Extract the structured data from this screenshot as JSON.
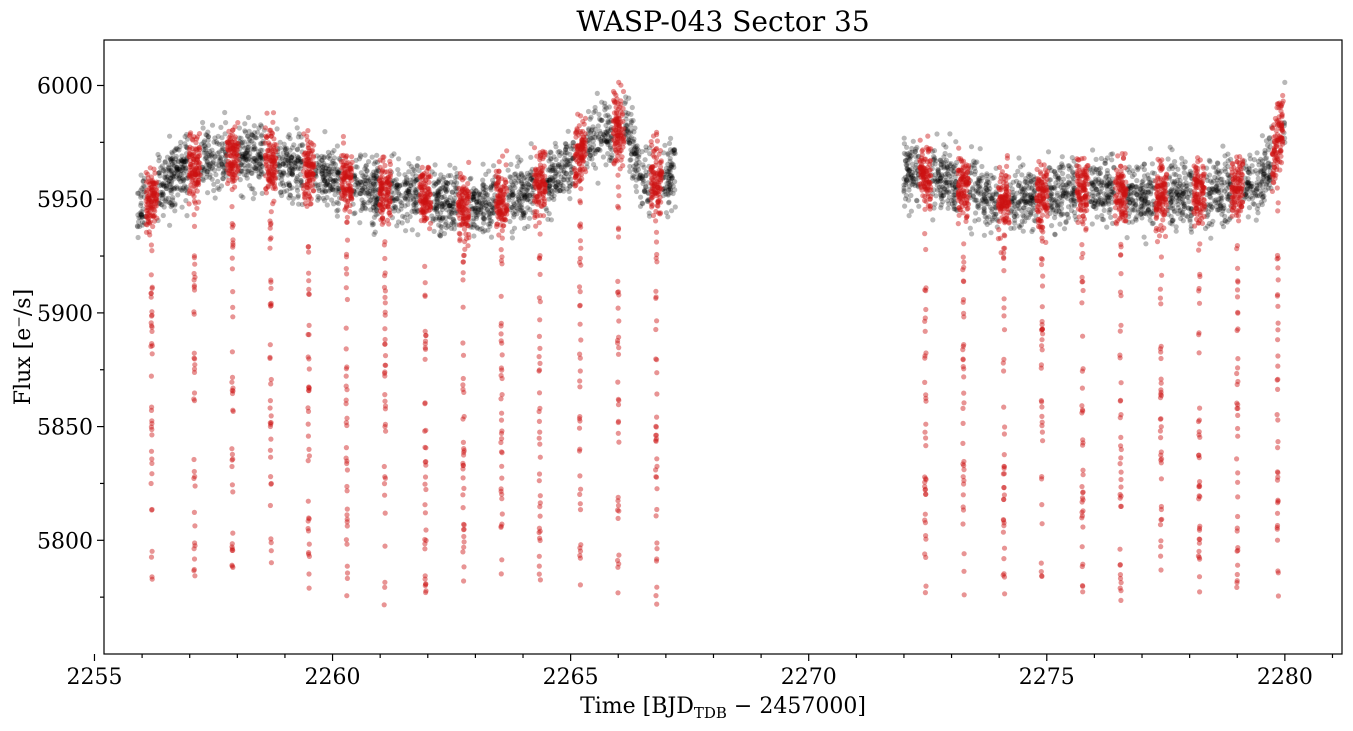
{
  "chart_data": {
    "type": "scatter",
    "title": "WASP-043 Sector 35",
    "xlabel_main": "Time [BJD",
    "xlabel_sub": "TDB",
    "xlabel_rest": " − 2457000]",
    "ylabel": "Flux [e⁻/s]",
    "xlim": [
      2255.2,
      2281.2
    ],
    "ylim": [
      5750,
      6020
    ],
    "xticks": [
      2255,
      2260,
      2265,
      2270,
      2275,
      2280
    ],
    "yticks": [
      5800,
      5850,
      5900,
      5950,
      6000
    ],
    "grid": false,
    "legend": "none",
    "segments": [
      {
        "start": 2255.9,
        "end": 2267.2
      },
      {
        "start": 2272.0,
        "end": 2280.0
      }
    ],
    "baseline_trend": [
      [
        2255.9,
        5945
      ],
      [
        2256.5,
        5957
      ],
      [
        2257.3,
        5968
      ],
      [
        2258.2,
        5970
      ],
      [
        2259.5,
        5962
      ],
      [
        2260.5,
        5956
      ],
      [
        2261.8,
        5951
      ],
      [
        2262.8,
        5947
      ],
      [
        2263.8,
        5950
      ],
      [
        2264.6,
        5960
      ],
      [
        2265.5,
        5976
      ],
      [
        2266.2,
        5982
      ],
      [
        2266.5,
        5958
      ],
      [
        2267.2,
        5960
      ],
      [
        2272.0,
        5962
      ],
      [
        2273.0,
        5958
      ],
      [
        2274.0,
        5948
      ],
      [
        2275.0,
        5952
      ],
      [
        2276.0,
        5954
      ],
      [
        2277.0,
        5952
      ],
      [
        2278.0,
        5952
      ],
      [
        2279.0,
        5954
      ],
      [
        2279.6,
        5962
      ],
      [
        2280.0,
        5982
      ]
    ],
    "transit_times": [
      2256.2,
      2257.1,
      2257.9,
      2258.7,
      2259.5,
      2260.3,
      2261.1,
      2261.95,
      2262.75,
      2263.55,
      2264.35,
      2265.2,
      2266.0,
      2266.8,
      2272.45,
      2273.25,
      2274.1,
      2274.9,
      2275.75,
      2276.55,
      2277.4,
      2278.2,
      2279.0,
      2279.85
    ],
    "in_transit_min_flux": 5780,
    "series": [
      {
        "name": "",
        "color": "#000000",
        "alpha": 0.28
      },
      {
        "name": "",
        "color": "#cc1111",
        "alpha": 0.45
      }
    ]
  }
}
